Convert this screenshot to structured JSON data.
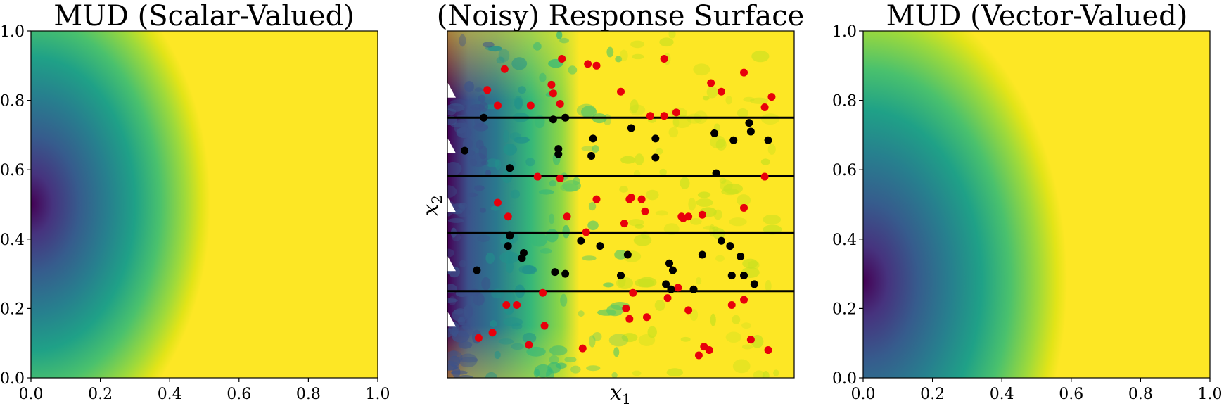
{
  "figure": {
    "panels": [
      {
        "title": "MUD (Scalar-Valued)"
      },
      {
        "title": "(Noisy) Response Surface"
      },
      {
        "title": "MUD (Vector-Valued)"
      }
    ]
  },
  "colors": {
    "viridis_dark": "#440154",
    "viridis_mid_dark": "#3b528b",
    "viridis_mid": "#21918c",
    "viridis_light": "#5ec962",
    "viridis_max": "#fde725",
    "red_points": "#e8000b",
    "black_points": "#000000"
  },
  "chart_data": [
    {
      "type": "heatmap",
      "title": "MUD (Scalar-Valued)",
      "xlim": [
        0.0,
        1.0
      ],
      "ylim": [
        0.0,
        1.0
      ],
      "xticks": [
        "0.0",
        "0.2",
        "0.4",
        "0.6",
        "0.8",
        "1.0"
      ],
      "yticks": [
        "0.0",
        "0.2",
        "0.4",
        "0.6",
        "0.8",
        "1.0"
      ],
      "colormap": "viridis",
      "density_center": [
        0.0,
        0.55
      ]
    },
    {
      "type": "scatter",
      "title": "(Noisy) Response Surface",
      "xlabel": "x",
      "xlabel_sub": "1",
      "ylabel": "x",
      "ylabel_sub": "2",
      "xlim": [
        0.0,
        1.0
      ],
      "ylim": [
        0.0,
        1.0
      ],
      "colormap": "viridis",
      "horizontal_lines": [
        0.25,
        0.417,
        0.583,
        0.75
      ],
      "markers_triangle": [
        0.17,
        0.33,
        0.5,
        0.67,
        0.83
      ],
      "series": [
        {
          "name": "red",
          "color": "#e8000b",
          "points": [
            [
              0.165,
              0.89
            ],
            [
              0.33,
              0.92
            ],
            [
              0.405,
              0.905
            ],
            [
              0.43,
              0.9
            ],
            [
              0.625,
              0.92
            ],
            [
              0.115,
              0.83
            ],
            [
              0.3,
              0.845
            ],
            [
              0.305,
              0.82
            ],
            [
              0.5,
              0.825
            ],
            [
              0.76,
              0.85
            ],
            [
              0.79,
              0.825
            ],
            [
              0.855,
              0.88
            ],
            [
              0.145,
              0.785
            ],
            [
              0.24,
              0.785
            ],
            [
              0.325,
              0.79
            ],
            [
              0.625,
              0.755
            ],
            [
              0.585,
              0.755
            ],
            [
              0.66,
              0.765
            ],
            [
              0.915,
              0.78
            ],
            [
              0.935,
              0.81
            ],
            [
              0.43,
              0.515
            ],
            [
              0.26,
              0.58
            ],
            [
              0.325,
              0.575
            ],
            [
              0.145,
              0.505
            ],
            [
              0.175,
              0.465
            ],
            [
              0.345,
              0.465
            ],
            [
              0.525,
              0.515
            ],
            [
              0.53,
              0.52
            ],
            [
              0.56,
              0.515
            ],
            [
              0.57,
              0.48
            ],
            [
              0.675,
              0.465
            ],
            [
              0.695,
              0.465
            ],
            [
              0.68,
              0.46
            ],
            [
              0.735,
              0.47
            ],
            [
              0.855,
              0.49
            ],
            [
              0.915,
              0.58
            ],
            [
              0.51,
              0.445
            ],
            [
              0.4,
              0.42
            ],
            [
              0.275,
              0.245
            ],
            [
              0.17,
              0.21
            ],
            [
              0.2,
              0.21
            ],
            [
              0.515,
              0.2
            ],
            [
              0.535,
              0.245
            ],
            [
              0.635,
              0.23
            ],
            [
              0.665,
              0.26
            ],
            [
              0.855,
              0.225
            ],
            [
              0.82,
              0.21
            ],
            [
              0.525,
              0.17
            ],
            [
              0.575,
              0.175
            ],
            [
              0.695,
              0.195
            ],
            [
              0.28,
              0.15
            ],
            [
              0.09,
              0.115
            ],
            [
              0.13,
              0.13
            ],
            [
              0.235,
              0.095
            ],
            [
              0.39,
              0.085
            ],
            [
              0.725,
              0.065
            ],
            [
              0.74,
              0.09
            ],
            [
              0.755,
              0.08
            ],
            [
              0.875,
              0.11
            ],
            [
              0.925,
              0.08
            ]
          ]
        },
        {
          "name": "black",
          "color": "#000000",
          "points": [
            [
              0.105,
              0.75
            ],
            [
              0.305,
              0.745
            ],
            [
              0.34,
              0.75
            ],
            [
              0.53,
              0.72
            ],
            [
              0.6,
              0.69
            ],
            [
              0.42,
              0.69
            ],
            [
              0.415,
              0.64
            ],
            [
              0.32,
              0.645
            ],
            [
              0.32,
              0.66
            ],
            [
              0.6,
              0.635
            ],
            [
              0.05,
              0.655
            ],
            [
              0.18,
              0.605
            ],
            [
              0.775,
              0.59
            ],
            [
              0.77,
              0.705
            ],
            [
              0.825,
              0.685
            ],
            [
              0.87,
              0.735
            ],
            [
              0.875,
              0.71
            ],
            [
              0.925,
              0.685
            ],
            [
              0.18,
              0.41
            ],
            [
              0.175,
              0.38
            ],
            [
              0.215,
              0.345
            ],
            [
              0.22,
              0.36
            ],
            [
              0.385,
              0.395
            ],
            [
              0.44,
              0.38
            ],
            [
              0.52,
              0.355
            ],
            [
              0.64,
              0.33
            ],
            [
              0.65,
              0.31
            ],
            [
              0.735,
              0.355
            ],
            [
              0.79,
              0.395
            ],
            [
              0.815,
              0.38
            ],
            [
              0.845,
              0.35
            ],
            [
              0.085,
              0.31
            ],
            [
              0.31,
              0.305
            ],
            [
              0.34,
              0.3
            ],
            [
              0.5,
              0.295
            ],
            [
              0.63,
              0.27
            ],
            [
              0.645,
              0.255
            ],
            [
              0.71,
              0.255
            ],
            [
              0.82,
              0.295
            ],
            [
              0.855,
              0.295
            ],
            [
              0.885,
              0.27
            ]
          ]
        }
      ]
    },
    {
      "type": "heatmap",
      "title": "MUD (Vector-Valued)",
      "xlim": [
        0.0,
        1.0
      ],
      "ylim": [
        0.0,
        1.0
      ],
      "xticks": [
        "0.0",
        "0.2",
        "0.4",
        "0.6",
        "0.8",
        "1.0"
      ],
      "yticks": [
        "0.0",
        "0.2",
        "0.4",
        "0.6",
        "0.8",
        "1.0"
      ],
      "colormap": "viridis",
      "density_center": [
        0.0,
        0.3
      ]
    }
  ]
}
